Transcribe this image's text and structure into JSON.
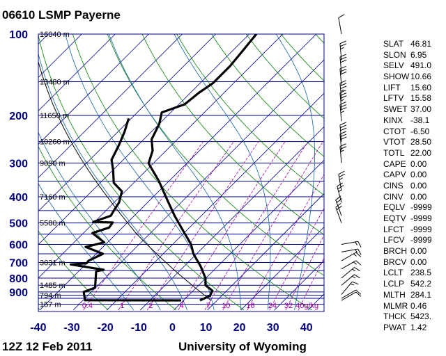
{
  "header": {
    "title": "06610 LSMP Payerne"
  },
  "footer": {
    "date": "12Z 12 Feb 2011",
    "source": "University of Wyoming"
  },
  "indices": [
    {
      "key": "SLAT",
      "value": "46.81"
    },
    {
      "key": "SLON",
      "value": "6.95"
    },
    {
      "key": "SELV",
      "value": "491.0"
    },
    {
      "key": "SHOW",
      "value": "10.66"
    },
    {
      "key": "LIFT",
      "value": "15.60"
    },
    {
      "key": "LFTV",
      "value": "15.58"
    },
    {
      "key": "SWET",
      "value": "37.00"
    },
    {
      "key": "KINX",
      "value": "-38.1"
    },
    {
      "key": "CTOT",
      "value": "-6.50"
    },
    {
      "key": "VTOT",
      "value": "28.50"
    },
    {
      "key": "TOTL",
      "value": "22.00"
    },
    {
      "key": "CAPE",
      "value": "0.00"
    },
    {
      "key": "CAPV",
      "value": "0.00"
    },
    {
      "key": "CINS",
      "value": "0.00"
    },
    {
      "key": "CINV",
      "value": "0.00"
    },
    {
      "key": "EQLV",
      "value": "-9999"
    },
    {
      "key": "EQTV",
      "value": "-9999"
    },
    {
      "key": "LFCT",
      "value": "-9999"
    },
    {
      "key": "LFCV",
      "value": "-9999"
    },
    {
      "key": "BRCH",
      "value": "0.00"
    },
    {
      "key": "BRCV",
      "value": "0.00"
    },
    {
      "key": "LCLT",
      "value": "238.5"
    },
    {
      "key": "LCLP",
      "value": "542.2"
    },
    {
      "key": "MLTH",
      "value": "284.1"
    },
    {
      "key": "MLMR",
      "value": "0.46"
    },
    {
      "key": "THCK",
      "value": "5423."
    },
    {
      "key": "PWAT",
      "value": "1.42"
    }
  ],
  "chart_data": {
    "type": "skew-t",
    "xlabel": "Temperature (C)",
    "ylabel": "Pressure (hPa)",
    "xlim": [
      -40,
      45
    ],
    "ylim": [
      1050,
      100
    ],
    "x_ticks": [
      "-40",
      "-30",
      "-20",
      "-10",
      "0",
      "10",
      "20",
      "30",
      "40"
    ],
    "y_ticks": [
      "100",
      "200",
      "300",
      "400",
      "500",
      "600",
      "700",
      "800",
      "900"
    ],
    "height_labels": [
      {
        "p": 100,
        "label": "16040 m"
      },
      {
        "p": 150,
        "label": "13480 m"
      },
      {
        "p": 200,
        "label": "11650 m"
      },
      {
        "p": 250,
        "label": "10260 m"
      },
      {
        "p": 300,
        "label": "9090 m"
      },
      {
        "p": 400,
        "label": "7160 m"
      },
      {
        "p": 500,
        "label": "5580 m"
      },
      {
        "p": 700,
        "label": "3031 m"
      },
      {
        "p": 850,
        "label": "1485 m"
      },
      {
        "p": 925,
        "label": "794 m"
      },
      {
        "p": 1000,
        "label": "157 m"
      }
    ],
    "mixing_ratio_labels": [
      {
        "w": 0.4,
        "label": "0.4"
      },
      {
        "w": 1,
        "label": "1"
      },
      {
        "w": 2,
        "label": "2"
      },
      {
        "w": 4,
        "label": "4"
      },
      {
        "w": 7,
        "label": "7"
      },
      {
        "w": 10,
        "label": "10"
      },
      {
        "w": 16,
        "label": "16"
      },
      {
        "w": 24,
        "label": "24"
      },
      {
        "w": 32,
        "label": "32"
      },
      {
        "w": 40,
        "label": "40g/kg"
      }
    ],
    "temperature": [
      [
        967,
        4.9
      ],
      [
        930,
        6.5
      ],
      [
        890,
        5.7
      ],
      [
        850,
        2.0
      ],
      [
        800,
        -0.1
      ],
      [
        723,
        -5.1
      ],
      [
        650,
        -11
      ],
      [
        600,
        -14.5
      ],
      [
        529,
        -21.5
      ],
      [
        470,
        -28
      ],
      [
        410,
        -35
      ],
      [
        350,
        -43
      ],
      [
        301,
        -51.4
      ],
      [
        270,
        -54
      ],
      [
        245,
        -57.7
      ],
      [
        215,
        -60
      ],
      [
        195,
        -62.7
      ],
      [
        182,
        -58.3
      ],
      [
        165,
        -57.5
      ],
      [
        152,
        -56.2
      ],
      [
        131,
        -56.2
      ],
      [
        115,
        -57
      ],
      [
        100,
        -57.9
      ]
    ],
    "dewpoint": [
      [
        967,
        -0.7
      ],
      [
        966,
        -29.4
      ],
      [
        900,
        -32.3
      ],
      [
        868,
        -30.2
      ],
      [
        754,
        -34.8
      ],
      [
        745,
        -33
      ],
      [
        712,
        -44.4
      ],
      [
        705,
        -40
      ],
      [
        690,
        -40.2
      ],
      [
        650,
        -38
      ],
      [
        613,
        -45.2
      ],
      [
        590,
        -41
      ],
      [
        545,
        -47.3
      ],
      [
        520,
        -44
      ],
      [
        498,
        -44.4
      ],
      [
        496,
        -50.4
      ],
      [
        470,
        -47
      ],
      [
        442,
        -47.9
      ],
      [
        420,
        -48.5
      ],
      [
        382,
        -51
      ],
      [
        355,
        -56
      ],
      [
        320,
        -59.8
      ],
      [
        292,
        -63.5
      ],
      [
        259,
        -65.6
      ],
      [
        230,
        -68
      ],
      [
        205,
        -70.8
      ]
    ],
    "parcel": {
      "theta_k": 284.1,
      "lcl_hpa": 542.2,
      "start_hpa": 967
    },
    "wind_barbs": [
      {
        "p": 100,
        "dir": 350,
        "kt": 10
      },
      {
        "p": 125,
        "dir": 355,
        "kt": 25
      },
      {
        "p": 140,
        "dir": 355,
        "kt": 30
      },
      {
        "p": 155,
        "dir": 355,
        "kt": 30
      },
      {
        "p": 175,
        "dir": 355,
        "kt": 35
      },
      {
        "p": 190,
        "dir": 355,
        "kt": 35
      },
      {
        "p": 210,
        "dir": 355,
        "kt": 35
      },
      {
        "p": 250,
        "dir": 355,
        "kt": 30
      },
      {
        "p": 270,
        "dir": 355,
        "kt": 30
      },
      {
        "p": 300,
        "dir": 355,
        "kt": 25
      },
      {
        "p": 380,
        "dir": 350,
        "kt": 25
      },
      {
        "p": 420,
        "dir": 345,
        "kt": 25
      },
      {
        "p": 470,
        "dir": 340,
        "kt": 20
      },
      {
        "p": 500,
        "dir": 340,
        "kt": 20
      },
      {
        "p": 600,
        "dir": 80,
        "kt": 15
      },
      {
        "p": 640,
        "dir": 80,
        "kt": 15
      },
      {
        "p": 690,
        "dir": 60,
        "kt": 15
      },
      {
        "p": 740,
        "dir": 60,
        "kt": 15
      },
      {
        "p": 800,
        "dir": 50,
        "kt": 15
      },
      {
        "p": 850,
        "dir": 50,
        "kt": 15
      },
      {
        "p": 920,
        "dir": 40,
        "kt": 15
      },
      {
        "p": 950,
        "dir": 60,
        "kt": 10
      },
      {
        "p": 967,
        "dir": 60,
        "kt": 10
      }
    ]
  },
  "colors": {
    "axis": "#000080",
    "isotherm": "#0000a0",
    "isobar": "#000090",
    "dry_adiabat": "#008000",
    "moist_adiabat": "#1060a0",
    "mixing_ratio": "#a000a0",
    "sounding": "#000000"
  }
}
